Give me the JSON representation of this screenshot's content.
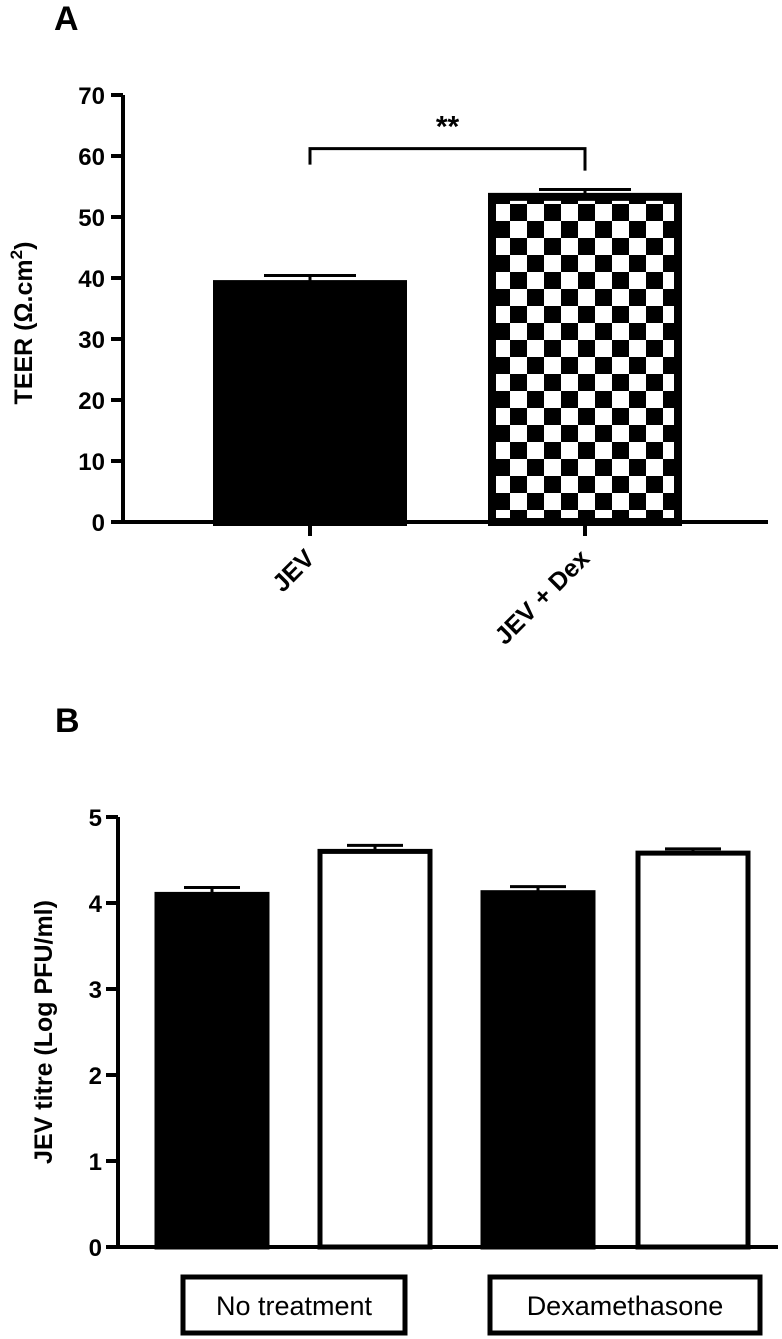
{
  "chart_data": [
    {
      "panel": "A",
      "type": "bar",
      "ylabel_main": "TEER (Ω.cm",
      "ylabel_sup": "2",
      "ylabel_close": ")",
      "xlabel": "",
      "ylim": [
        0,
        70
      ],
      "yticks": [
        "0",
        "10",
        "20",
        "30",
        "40",
        "50",
        "60",
        "70"
      ],
      "categories": [
        "JEV",
        "JEV + Dex"
      ],
      "values": [
        39,
        53.3
      ],
      "errors": [
        1.4,
        1.2
      ],
      "fills": [
        "solid-black",
        "checkerboard"
      ],
      "significance": {
        "between": [
          0,
          1
        ],
        "label": "**"
      },
      "grid": false,
      "legend": "none"
    },
    {
      "panel": "B",
      "type": "bar",
      "ylabel": "JEV titre (Log PFU/ml)",
      "xlabel": "",
      "ylim": [
        0,
        5
      ],
      "yticks": [
        "0",
        "1",
        "2",
        "3",
        "4",
        "5"
      ],
      "groups": [
        "No treatment",
        "Dexamethasone"
      ],
      "bars": [
        {
          "group": 0,
          "value": 4.1,
          "error": 0.08,
          "fill": "black"
        },
        {
          "group": 0,
          "value": 4.6,
          "error": 0.07,
          "fill": "white"
        },
        {
          "group": 1,
          "value": 4.12,
          "error": 0.07,
          "fill": "black"
        },
        {
          "group": 1,
          "value": 4.58,
          "error": 0.05,
          "fill": "white"
        }
      ],
      "grid": false,
      "legend": "none"
    }
  ],
  "colors": {
    "ink": "#000000",
    "paper": "#ffffff"
  }
}
